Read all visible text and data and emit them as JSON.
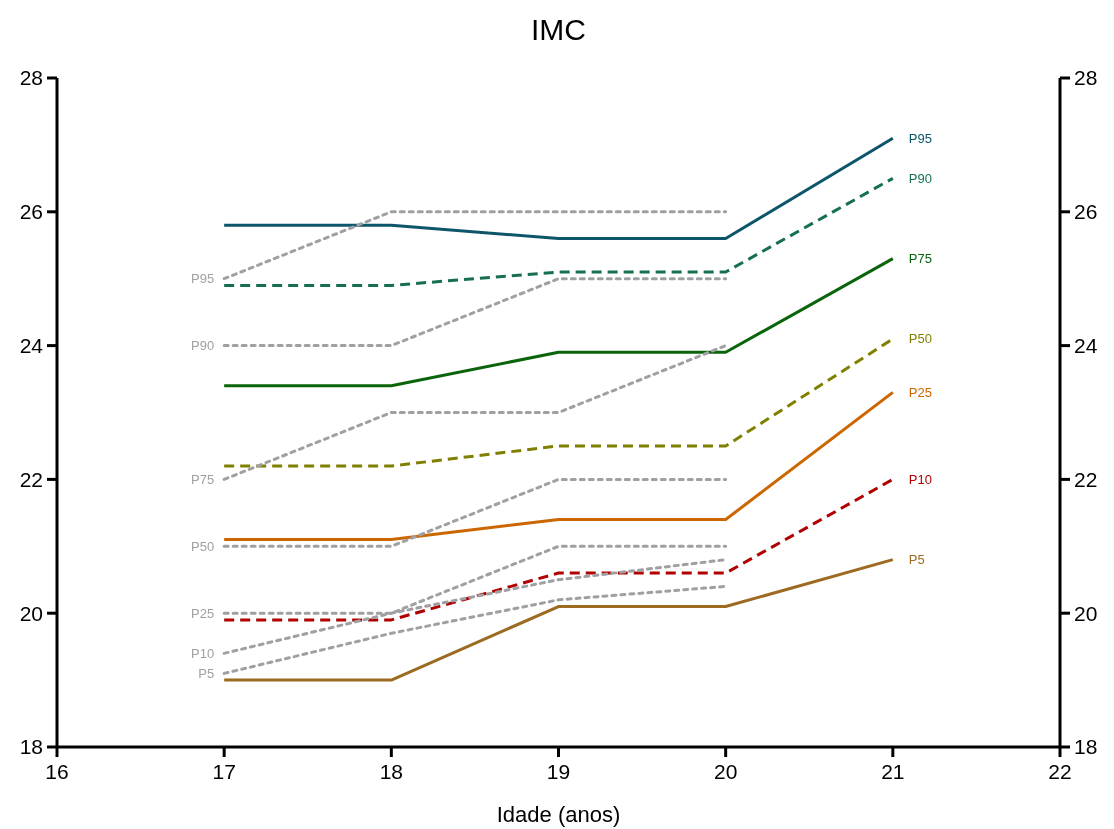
{
  "chart_data": {
    "type": "line",
    "title": "IMC",
    "xlabel": "Idade (anos)",
    "xlim": [
      16,
      22
    ],
    "xticks": [
      16,
      17,
      18,
      19,
      20,
      21,
      22
    ],
    "ylim": [
      18,
      28
    ],
    "yticks": [
      18,
      20,
      22,
      24,
      26,
      28
    ],
    "y2lim": [
      18,
      28
    ],
    "y2ticks": [
      18,
      20,
      22,
      24,
      26,
      28
    ],
    "grid": false,
    "marker": "none",
    "series": [
      {
        "name": "P95",
        "color": "#0d5569",
        "line_style": "solid",
        "x": [
          17,
          18,
          19,
          20,
          21
        ],
        "values": [
          25.8,
          25.8,
          25.6,
          25.6,
          27.1
        ]
      },
      {
        "name": "P90",
        "color": "#16704f",
        "line_style": "dashed",
        "x": [
          17,
          18,
          19,
          20,
          21
        ],
        "values": [
          24.9,
          24.9,
          25.1,
          25.1,
          26.5
        ]
      },
      {
        "name": "P75",
        "color": "#0a640a",
        "line_style": "solid",
        "x": [
          17,
          18,
          19,
          20,
          21
        ],
        "values": [
          23.4,
          23.4,
          23.9,
          23.9,
          25.3
        ]
      },
      {
        "name": "P50",
        "color": "#808000",
        "line_style": "dashed",
        "x": [
          17,
          18,
          19,
          20,
          21
        ],
        "values": [
          22.2,
          22.2,
          22.5,
          22.5,
          24.1
        ]
      },
      {
        "name": "P25",
        "color": "#cc6600",
        "line_style": "solid",
        "x": [
          17,
          18,
          19,
          20,
          21
        ],
        "values": [
          21.1,
          21.1,
          21.4,
          21.4,
          23.3
        ]
      },
      {
        "name": "P10",
        "color": "#b00000",
        "line_style": "dashed",
        "x": [
          17,
          18,
          19,
          20,
          21
        ],
        "values": [
          19.9,
          19.9,
          20.6,
          20.6,
          22.0
        ]
      },
      {
        "name": "P5",
        "color": "#9c6a20",
        "line_style": "solid",
        "x": [
          17,
          18,
          19,
          20,
          21
        ],
        "values": [
          19.0,
          19.0,
          20.1,
          20.1,
          20.8
        ]
      },
      {
        "name": "P95",
        "color": "#a0a0a4",
        "line_style": "dotted",
        "x": [
          17,
          18,
          19,
          20
        ],
        "values": [
          25,
          26,
          26,
          26
        ]
      },
      {
        "name": "P90",
        "color": "#a0a0a4",
        "line_style": "dotted",
        "x": [
          17,
          18,
          19,
          20
        ],
        "values": [
          24,
          24,
          25,
          25
        ]
      },
      {
        "name": "P75",
        "color": "#a0a0a4",
        "line_style": "dotted",
        "x": [
          17,
          18,
          19,
          20
        ],
        "values": [
          22,
          23,
          23,
          24
        ]
      },
      {
        "name": "P50",
        "color": "#a0a0a4",
        "line_style": "dotted",
        "x": [
          17,
          18,
          19,
          20
        ],
        "values": [
          21,
          21,
          22,
          22
        ]
      },
      {
        "name": "P25",
        "color": "#a0a0a4",
        "line_style": "dotted",
        "x": [
          17,
          18,
          19,
          20
        ],
        "values": [
          20,
          20,
          21,
          21
        ]
      },
      {
        "name": "P10",
        "color": "#a0a0a4",
        "line_style": "dotted",
        "x": [
          17,
          18,
          19,
          20
        ],
        "values": [
          19.4,
          20.0,
          20.5,
          20.8
        ]
      },
      {
        "name": "P5",
        "color": "#a0a0a4",
        "line_style": "dotted",
        "x": [
          17,
          18,
          19,
          20
        ],
        "values": [
          19.1,
          19.7,
          20.2,
          20.4
        ]
      }
    ]
  }
}
